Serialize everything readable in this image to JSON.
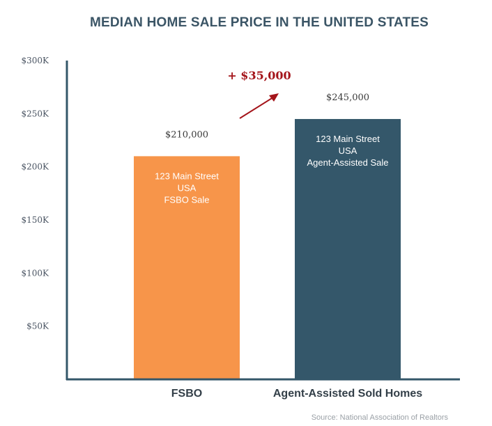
{
  "chart_data": {
    "type": "bar",
    "title": "MEDIAN HOME SALE PRICE IN THE UNITED STATES",
    "categories": [
      "FSBO",
      "Agent-Assisted Sold Homes"
    ],
    "values": [
      210000,
      245000
    ],
    "value_labels": [
      "$210,000",
      "$245,000"
    ],
    "bar_labels": [
      [
        "123 Main Street",
        "USA",
        "FSBO Sale"
      ],
      [
        "123 Main Street",
        "USA",
        "Agent-Assisted Sale"
      ]
    ],
    "bar_colors": [
      "#f7954a",
      "#34576a"
    ],
    "yticks": [
      50000,
      100000,
      150000,
      200000,
      250000,
      300000
    ],
    "ytick_labels": [
      "$50K",
      "$100K",
      "$150K",
      "$200K",
      "$250K",
      "$300K"
    ],
    "ylim": [
      0,
      300000
    ],
    "annotation": "+ $35,000",
    "annotation_color": "#a4141a",
    "axis_color": "#34576a",
    "grid": false,
    "xlabel": "",
    "ylabel": ""
  },
  "source": "Source: National Association  of Realtors"
}
